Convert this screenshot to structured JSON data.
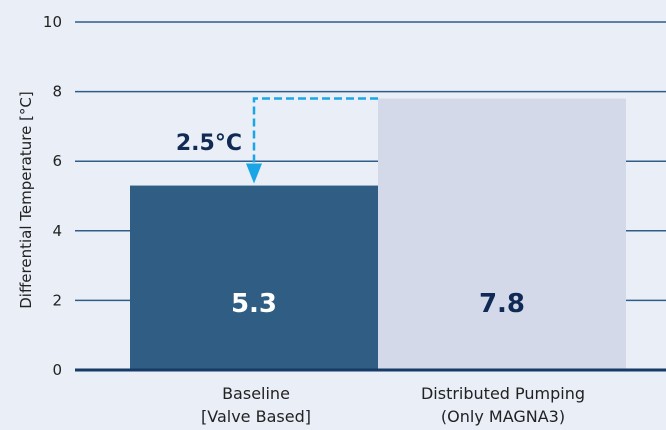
{
  "chart_data": {
    "type": "bar",
    "title": "",
    "xlabel": "",
    "ylabel": "Differential Temperature [°C]",
    "ylim": [
      0,
      10
    ],
    "yticks": [
      0,
      2,
      4,
      6,
      8,
      10
    ],
    "grid": true,
    "categories": [
      [
        "Baseline",
        "[Valve Based]"
      ],
      [
        "Distributed Pumping",
        "(Only MAGNA3)"
      ]
    ],
    "values": [
      5.3,
      7.8
    ],
    "value_labels": [
      "5.3",
      "7.8"
    ],
    "bar_colors": [
      "#2f5d84",
      "#d3d9e8"
    ],
    "value_label_colors": [
      "#ffffff",
      "#102a55"
    ],
    "annotation": {
      "text": "2.5°C",
      "from": 7.8,
      "to": 5.3,
      "color": "#1aa6e6"
    }
  },
  "colors": {
    "background": "#e9eef7",
    "grid": "#2f5d8a",
    "axis": "#153b66"
  }
}
